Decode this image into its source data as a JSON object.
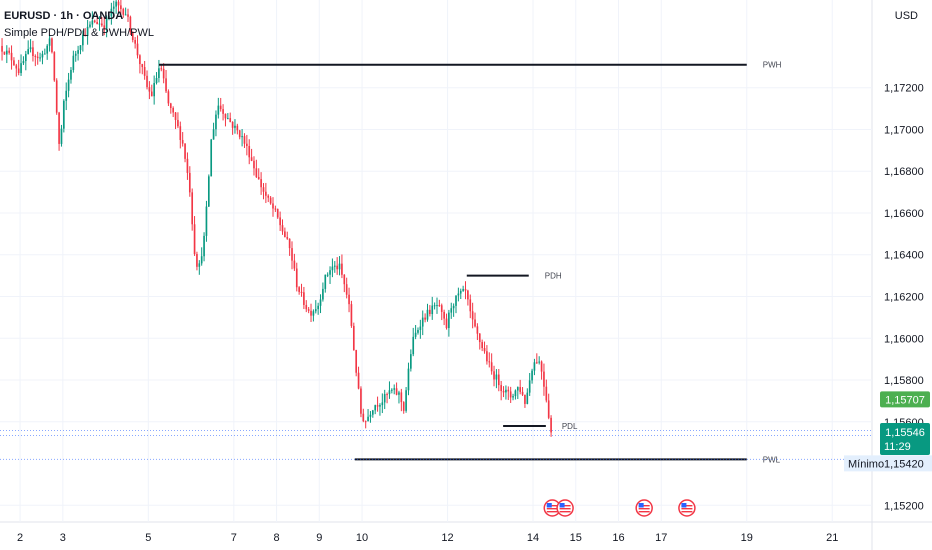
{
  "header": {
    "symbol_line": "EURUSD · 1h · OANDA",
    "indicator_line": "Simple PDH/PDL & PWH/PWL"
  },
  "currency": "USD",
  "chart_data": {
    "type": "candlestick",
    "y_ticks": [
      "1,17200",
      "1,17000",
      "1,16800",
      "1,16600",
      "1,16400",
      "1,16200",
      "1,16000",
      "1,15800",
      "1,15600",
      "1,15200"
    ],
    "y_tick_values": [
      1.172,
      1.17,
      1.168,
      1.166,
      1.164,
      1.162,
      1.16,
      1.158,
      1.156,
      1.152
    ],
    "ylim": [
      1.1512,
      1.1762
    ],
    "x_ticks": [
      {
        "label": "2",
        "x": 2
      },
      {
        "label": "3",
        "x": 3
      },
      {
        "label": "5",
        "x": 5
      },
      {
        "label": "7",
        "x": 7
      },
      {
        "label": "8",
        "x": 8
      },
      {
        "label": "9",
        "x": 9
      },
      {
        "label": "10",
        "x": 10
      },
      {
        "label": "12",
        "x": 12
      },
      {
        "label": "14",
        "x": 14
      },
      {
        "label": "15",
        "x": 15
      },
      {
        "label": "16",
        "x": 16
      },
      {
        "label": "17",
        "x": 17
      },
      {
        "label": "19",
        "x": 19
      },
      {
        "label": "21",
        "x": 21
      }
    ],
    "xlim": [
      1.53,
      21.93
    ],
    "price_path": [
      [
        1.55,
        1.174
      ],
      [
        1.8,
        1.1735
      ],
      [
        2.0,
        1.1728
      ],
      [
        2.25,
        1.1738
      ],
      [
        2.5,
        1.1734
      ],
      [
        2.75,
        1.1743
      ],
      [
        2.85,
        1.1718
      ],
      [
        2.95,
        1.169
      ],
      [
        3.05,
        1.1712
      ],
      [
        3.25,
        1.1733
      ],
      [
        3.5,
        1.1745
      ],
      [
        3.75,
        1.1752
      ],
      [
        4.0,
        1.175
      ],
      [
        4.25,
        1.176
      ],
      [
        4.5,
        1.1756
      ],
      [
        4.75,
        1.1738
      ],
      [
        5.0,
        1.172
      ],
      [
        5.1,
        1.1716
      ],
      [
        5.3,
        1.1731
      ],
      [
        5.5,
        1.1712
      ],
      [
        5.7,
        1.1702
      ],
      [
        5.85,
        1.1692
      ],
      [
        6.0,
        1.1671
      ],
      [
        6.1,
        1.1643
      ],
      [
        6.2,
        1.1632
      ],
      [
        6.35,
        1.165
      ],
      [
        6.5,
        1.1695
      ],
      [
        6.65,
        1.1712
      ],
      [
        6.8,
        1.1708
      ],
      [
        7.0,
        1.1702
      ],
      [
        7.2,
        1.1697
      ],
      [
        7.4,
        1.1688
      ],
      [
        7.6,
        1.1676
      ],
      [
        7.8,
        1.1667
      ],
      [
        8.0,
        1.166
      ],
      [
        8.2,
        1.165
      ],
      [
        8.35,
        1.1642
      ],
      [
        8.5,
        1.1626
      ],
      [
        8.65,
        1.1618
      ],
      [
        8.8,
        1.1612
      ],
      [
        9.0,
        1.1616
      ],
      [
        9.15,
        1.1628
      ],
      [
        9.3,
        1.1634
      ],
      [
        9.5,
        1.1634
      ],
      [
        9.65,
        1.1623
      ],
      [
        9.75,
        1.1612
      ],
      [
        9.85,
        1.1592
      ],
      [
        10.0,
        1.1564
      ],
      [
        10.1,
        1.156
      ],
      [
        10.3,
        1.1568
      ],
      [
        10.5,
        1.157
      ],
      [
        10.7,
        1.1575
      ],
      [
        10.9,
        1.1573
      ],
      [
        11.0,
        1.1566
      ],
      [
        11.2,
        1.1598
      ],
      [
        11.4,
        1.1608
      ],
      [
        11.6,
        1.1613
      ],
      [
        11.8,
        1.1616
      ],
      [
        12.0,
        1.1605
      ],
      [
        12.1,
        1.1615
      ],
      [
        12.3,
        1.1621
      ],
      [
        12.45,
        1.1622
      ],
      [
        12.6,
        1.1608
      ],
      [
        12.75,
        1.16
      ],
      [
        12.9,
        1.1593
      ],
      [
        13.05,
        1.1584
      ],
      [
        13.2,
        1.158
      ],
      [
        13.3,
        1.1576
      ],
      [
        13.5,
        1.1572
      ],
      [
        13.7,
        1.1577
      ],
      [
        13.85,
        1.1569
      ],
      [
        14.0,
        1.1586
      ],
      [
        14.1,
        1.159
      ],
      [
        14.2,
        1.1588
      ],
      [
        14.35,
        1.157
      ],
      [
        14.45,
        1.1555
      ]
    ],
    "last_price": "1,15546",
    "countdown": "11:29",
    "level_tag": "1,15707",
    "min_label": "Mínimo",
    "min_value": "1,15420",
    "levels": [
      {
        "name": "PWH",
        "value": 1.1731,
        "x_start": 5.25,
        "x_end": 19.0
      },
      {
        "name": "PDH",
        "value": 1.163,
        "x_start": 12.45,
        "x_end": 13.9
      },
      {
        "name": "PDL",
        "value": 1.1558,
        "x_start": 13.3,
        "x_end": 14.3
      },
      {
        "name": "PWL",
        "value": 1.1542,
        "x_start": 9.83,
        "x_end": 19.0
      }
    ],
    "events_x": [
      14.45,
      14.75,
      16.6,
      17.6
    ],
    "colors": {
      "up": "#089981",
      "down": "#f23645",
      "level": "#131722",
      "last": "#089981",
      "tag": "#4caf50",
      "min_bg": "#e3effd"
    }
  }
}
